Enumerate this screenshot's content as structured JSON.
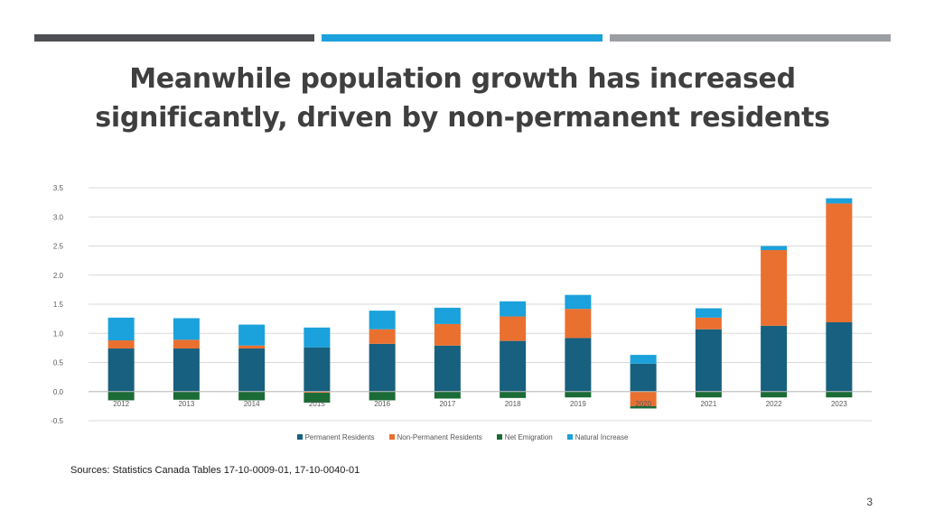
{
  "slide": {
    "title_line1": "Meanwhile population growth has increased",
    "title_line2": "significantly, driven by non-permanent residents",
    "source": "Sources: Statistics Canada Tables 17-10-0009-01, 17-10-0040-01",
    "page_number": "3"
  },
  "colors": {
    "strip_dark": "#4d4f53",
    "strip_blue": "#1ba1db",
    "strip_gray": "#9b9ea2"
  },
  "chart_data": {
    "type": "bar",
    "stacked": true,
    "title": "",
    "xlabel": "",
    "ylabel": "",
    "ylim": [
      -0.5,
      3.5
    ],
    "yticks": [
      "-0.5",
      "0.0",
      "0.5",
      "1.0",
      "1.5",
      "2.0",
      "2.5",
      "3.0",
      "3.5"
    ],
    "grid": true,
    "legend_position": "bottom",
    "categories": [
      "2012",
      "2013",
      "2014",
      "2015",
      "2016",
      "2017",
      "2018",
      "2019",
      "2020",
      "2021",
      "2022",
      "2023"
    ],
    "series": [
      {
        "name": "Permanent Residents",
        "color": "#17607f",
        "values": [
          0.74,
          0.74,
          0.74,
          0.76,
          0.82,
          0.79,
          0.87,
          0.92,
          0.48,
          1.07,
          1.13,
          1.19
        ]
      },
      {
        "name": "Non-Permanent Residents",
        "color": "#ea7030",
        "values": [
          0.14,
          0.15,
          0.05,
          -0.02,
          0.25,
          0.37,
          0.42,
          0.5,
          -0.25,
          0.2,
          1.3,
          2.04
        ]
      },
      {
        "name": "Net Emigration",
        "color": "#1a6b36",
        "values": [
          -0.15,
          -0.14,
          -0.15,
          -0.17,
          -0.15,
          -0.12,
          -0.11,
          -0.1,
          -0.04,
          -0.1,
          -0.1,
          -0.1
        ]
      },
      {
        "name": "Natural Increase",
        "color": "#1ba1db",
        "values": [
          0.39,
          0.37,
          0.36,
          0.34,
          0.32,
          0.28,
          0.26,
          0.24,
          0.15,
          0.16,
          0.07,
          0.09
        ]
      }
    ]
  }
}
